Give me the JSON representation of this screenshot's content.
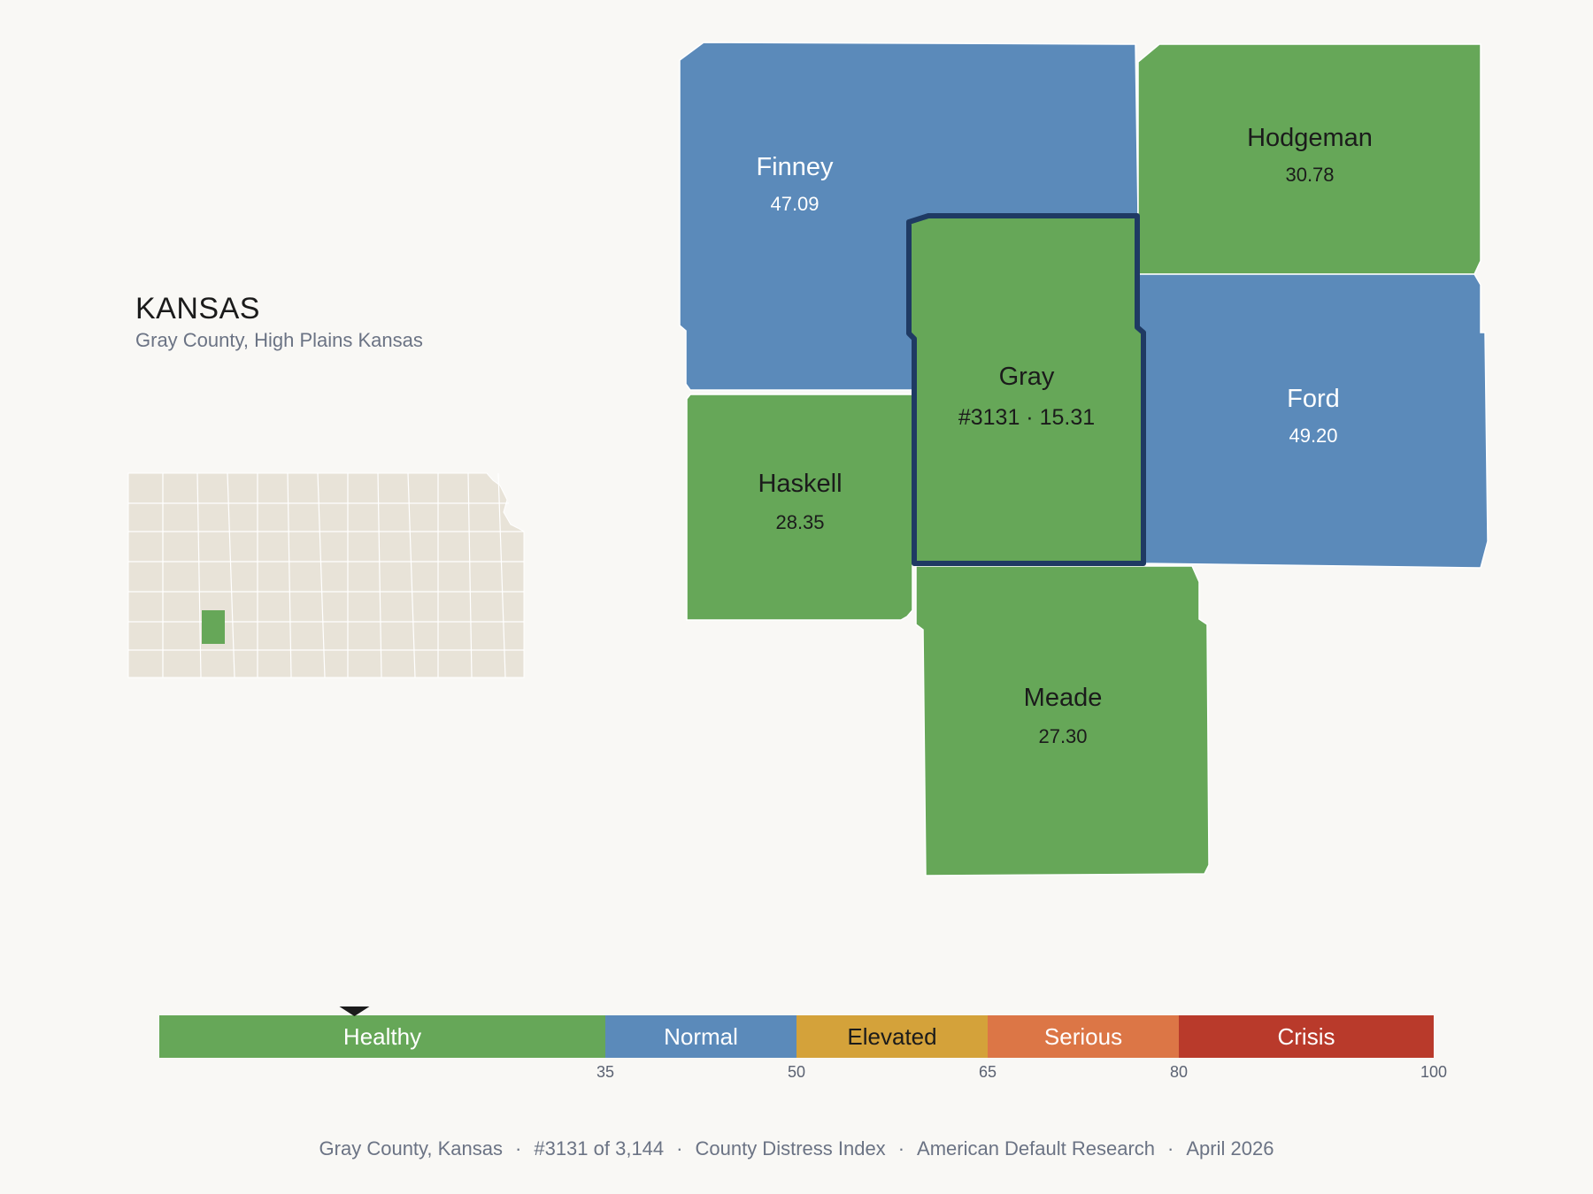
{
  "header": {
    "state": "KANSAS",
    "subtitle": "Gray County, High Plains Kansas"
  },
  "colors": {
    "background": "#f9f8f5",
    "healthy": "#66a758",
    "normal": "#5b8aba",
    "elevated": "#d4a23a",
    "serious": "#dc7646",
    "crisis": "#b93a2b",
    "inset_fill": "#e8e3d8",
    "highlight_outline": "#1f3a63"
  },
  "counties": [
    {
      "id": "finney",
      "name": "Finney",
      "value": "47.09",
      "category": "normal"
    },
    {
      "id": "hodgeman",
      "name": "Hodgeman",
      "value": "30.78",
      "category": "healthy"
    },
    {
      "id": "gray",
      "name": "Gray",
      "value": "#3131 · 15.31",
      "category": "healthy",
      "selected": true
    },
    {
      "id": "ford",
      "name": "Ford",
      "value": "49.20",
      "category": "normal"
    },
    {
      "id": "haskell",
      "name": "Haskell",
      "value": "28.35",
      "category": "healthy"
    },
    {
      "id": "meade",
      "name": "Meade",
      "value": "27.30",
      "category": "healthy"
    }
  ],
  "legend": {
    "min": 0,
    "max": 100,
    "marker_value": 15.31,
    "segments": [
      {
        "label": "Healthy",
        "from": 0,
        "to": 35,
        "color": "#66a758",
        "text_color": "#ffffff"
      },
      {
        "label": "Normal",
        "from": 35,
        "to": 50,
        "color": "#5b8aba",
        "text_color": "#ffffff"
      },
      {
        "label": "Elevated",
        "from": 50,
        "to": 65,
        "color": "#d4a23a",
        "text_color": "#1b1b1b"
      },
      {
        "label": "Serious",
        "from": 65,
        "to": 80,
        "color": "#dc7646",
        "text_color": "#ffffff"
      },
      {
        "label": "Crisis",
        "from": 80,
        "to": 100,
        "color": "#b93a2b",
        "text_color": "#ffffff"
      }
    ],
    "ticks": [
      "35",
      "50",
      "65",
      "80",
      "100"
    ]
  },
  "footer": {
    "items": [
      "Gray County, Kansas",
      "#3131 of 3,144",
      "County Distress Index",
      "American Default Research",
      "April 2026"
    ]
  }
}
